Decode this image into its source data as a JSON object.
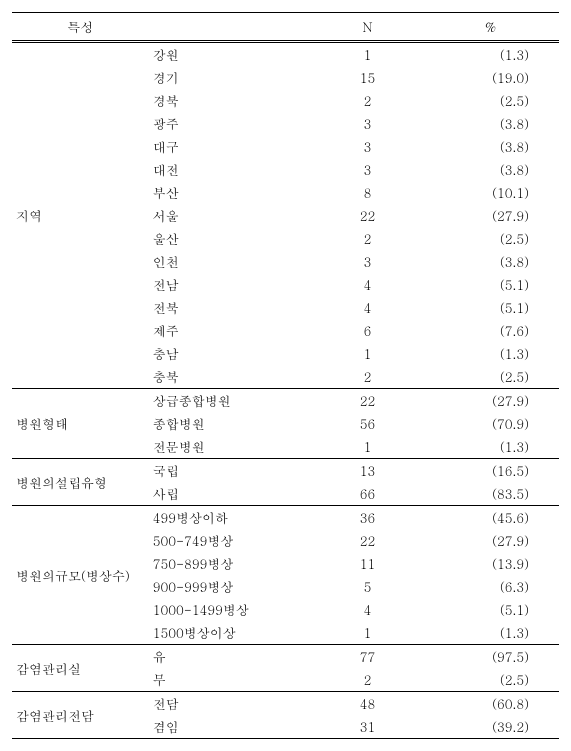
{
  "header": {
    "col1": "특성",
    "col2": "",
    "col3": "N",
    "col4": "%"
  },
  "groups": [
    {
      "name": "지역",
      "rows": [
        {
          "label": "강원",
          "n": "1",
          "pct": "(1.3)"
        },
        {
          "label": "경기",
          "n": "15",
          "pct": "(19.0)"
        },
        {
          "label": "경북",
          "n": "2",
          "pct": "(2.5)"
        },
        {
          "label": "광주",
          "n": "3",
          "pct": "(3.8)"
        },
        {
          "label": "대구",
          "n": "3",
          "pct": "(3.8)"
        },
        {
          "label": "대전",
          "n": "3",
          "pct": "(3.8)"
        },
        {
          "label": "부산",
          "n": "8",
          "pct": "(10.1)"
        },
        {
          "label": "서울",
          "n": "22",
          "pct": "(27.9)"
        },
        {
          "label": "울산",
          "n": "2",
          "pct": "(2.5)"
        },
        {
          "label": "인천",
          "n": "3",
          "pct": "(3.8)"
        },
        {
          "label": "전남",
          "n": "4",
          "pct": "(5.1)"
        },
        {
          "label": "전북",
          "n": "4",
          "pct": "(5.1)"
        },
        {
          "label": "제주",
          "n": "6",
          "pct": "(7.6)"
        },
        {
          "label": "충남",
          "n": "1",
          "pct": "(1.3)"
        },
        {
          "label": "충북",
          "n": "2",
          "pct": "(2.5)"
        }
      ]
    },
    {
      "name": "병원형태",
      "rows": [
        {
          "label": "상급종합병원",
          "n": "22",
          "pct": "(27.9)"
        },
        {
          "label": "종합병원",
          "n": "56",
          "pct": "(70.9)"
        },
        {
          "label": "전문병원",
          "n": "1",
          "pct": "(1.3)"
        }
      ]
    },
    {
      "name": "병원의설립유형",
      "rows": [
        {
          "label": "국립",
          "n": "13",
          "pct": "(16.5)"
        },
        {
          "label": "사립",
          "n": "66",
          "pct": "(83.5)"
        }
      ]
    },
    {
      "name": "병원의규모(병상수)",
      "rows": [
        {
          "label": "499병상이하",
          "n": "36",
          "pct": "(45.6)"
        },
        {
          "label": "500-749병상",
          "n": "22",
          "pct": "(27.9)"
        },
        {
          "label": "750-899병상",
          "n": "11",
          "pct": "(13.9)"
        },
        {
          "label": "900-999병상",
          "n": "5",
          "pct": "(6.3)"
        },
        {
          "label": "1000-1499병상",
          "n": "4",
          "pct": "(5.1)"
        },
        {
          "label": "1500병상이상",
          "n": "1",
          "pct": "(1.3)"
        }
      ]
    },
    {
      "name": "감염관리실",
      "rows": [
        {
          "label": "유",
          "n": "77",
          "pct": "(97.5)"
        },
        {
          "label": "무",
          "n": "2",
          "pct": "(2.5)"
        }
      ]
    },
    {
      "name": "감염관리전담",
      "rows": [
        {
          "label": "전담",
          "n": "48",
          "pct": "(60.8)"
        },
        {
          "label": "겸임",
          "n": "31",
          "pct": "(39.2)"
        }
      ]
    }
  ],
  "style": {
    "background_color": "#ffffff",
    "text_color": "#000000",
    "border_color": "#000000",
    "font_size_pt": 10,
    "font_family": "Batang, serif",
    "header_border": "double",
    "group_row_border": "solid 1px"
  }
}
